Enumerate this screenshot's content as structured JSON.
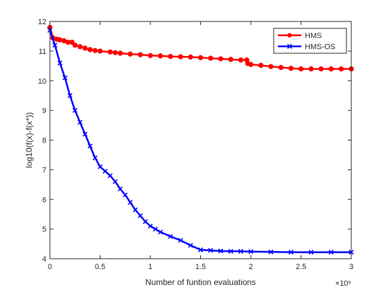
{
  "chart_data": {
    "type": "line",
    "xlabel": "Number of funtion evaluations",
    "ylabel": "log10(f(x)-f(x*))",
    "x_multiplier": "×10⁵",
    "xlim": [
      0,
      3
    ],
    "ylim": [
      4,
      12
    ],
    "xticks": [
      "0",
      "0.5",
      "1",
      "1.5",
      "2",
      "2.5",
      "3"
    ],
    "yticks": [
      "4",
      "5",
      "6",
      "7",
      "8",
      "9",
      "10",
      "11",
      "12"
    ],
    "grid": false,
    "legend_position": "top-right",
    "series": [
      {
        "name": "HMS",
        "color": "#ff0000",
        "marker": "circle",
        "points": [
          [
            0,
            11.8
          ],
          [
            0.03,
            11.45
          ],
          [
            0.07,
            11.4
          ],
          [
            0.1,
            11.38
          ],
          [
            0.14,
            11.35
          ],
          [
            0.18,
            11.3
          ],
          [
            0.22,
            11.3
          ],
          [
            0.25,
            11.2
          ],
          [
            0.3,
            11.15
          ],
          [
            0.35,
            11.1
          ],
          [
            0.4,
            11.05
          ],
          [
            0.45,
            11.02
          ],
          [
            0.5,
            11.0
          ],
          [
            0.6,
            10.97
          ],
          [
            0.65,
            10.95
          ],
          [
            0.7,
            10.93
          ],
          [
            0.8,
            10.9
          ],
          [
            0.9,
            10.88
          ],
          [
            1.0,
            10.85
          ],
          [
            1.1,
            10.84
          ],
          [
            1.2,
            10.82
          ],
          [
            1.3,
            10.81
          ],
          [
            1.4,
            10.8
          ],
          [
            1.5,
            10.78
          ],
          [
            1.6,
            10.76
          ],
          [
            1.7,
            10.74
          ],
          [
            1.8,
            10.72
          ],
          [
            1.9,
            10.7
          ],
          [
            1.96,
            10.7
          ],
          [
            1.97,
            10.58
          ],
          [
            2.0,
            10.55
          ],
          [
            2.1,
            10.52
          ],
          [
            2.2,
            10.48
          ],
          [
            2.3,
            10.45
          ],
          [
            2.4,
            10.42
          ],
          [
            2.5,
            10.4
          ],
          [
            2.6,
            10.4
          ],
          [
            2.7,
            10.4
          ],
          [
            2.8,
            10.4
          ],
          [
            2.9,
            10.4
          ],
          [
            3.0,
            10.4
          ]
        ]
      },
      {
        "name": "HMS-OS",
        "color": "#0000ff",
        "marker": "x",
        "points": [
          [
            0,
            11.7
          ],
          [
            0.05,
            11.2
          ],
          [
            0.1,
            10.6
          ],
          [
            0.15,
            10.1
          ],
          [
            0.2,
            9.5
          ],
          [
            0.25,
            9.0
          ],
          [
            0.3,
            8.6
          ],
          [
            0.35,
            8.2
          ],
          [
            0.4,
            7.8
          ],
          [
            0.45,
            7.4
          ],
          [
            0.5,
            7.1
          ],
          [
            0.55,
            6.95
          ],
          [
            0.6,
            6.8
          ],
          [
            0.65,
            6.6
          ],
          [
            0.7,
            6.35
          ],
          [
            0.75,
            6.15
          ],
          [
            0.8,
            5.9
          ],
          [
            0.85,
            5.65
          ],
          [
            0.9,
            5.45
          ],
          [
            0.95,
            5.25
          ],
          [
            1.0,
            5.1
          ],
          [
            1.05,
            5.0
          ],
          [
            1.1,
            4.9
          ],
          [
            1.2,
            4.75
          ],
          [
            1.3,
            4.62
          ],
          [
            1.4,
            4.45
          ],
          [
            1.5,
            4.3
          ],
          [
            1.6,
            4.28
          ],
          [
            1.7,
            4.26
          ],
          [
            1.8,
            4.25
          ],
          [
            1.9,
            4.25
          ],
          [
            2.0,
            4.24
          ],
          [
            2.2,
            4.23
          ],
          [
            2.4,
            4.22
          ],
          [
            2.6,
            4.22
          ],
          [
            2.8,
            4.22
          ],
          [
            3.0,
            4.22
          ]
        ]
      }
    ]
  }
}
